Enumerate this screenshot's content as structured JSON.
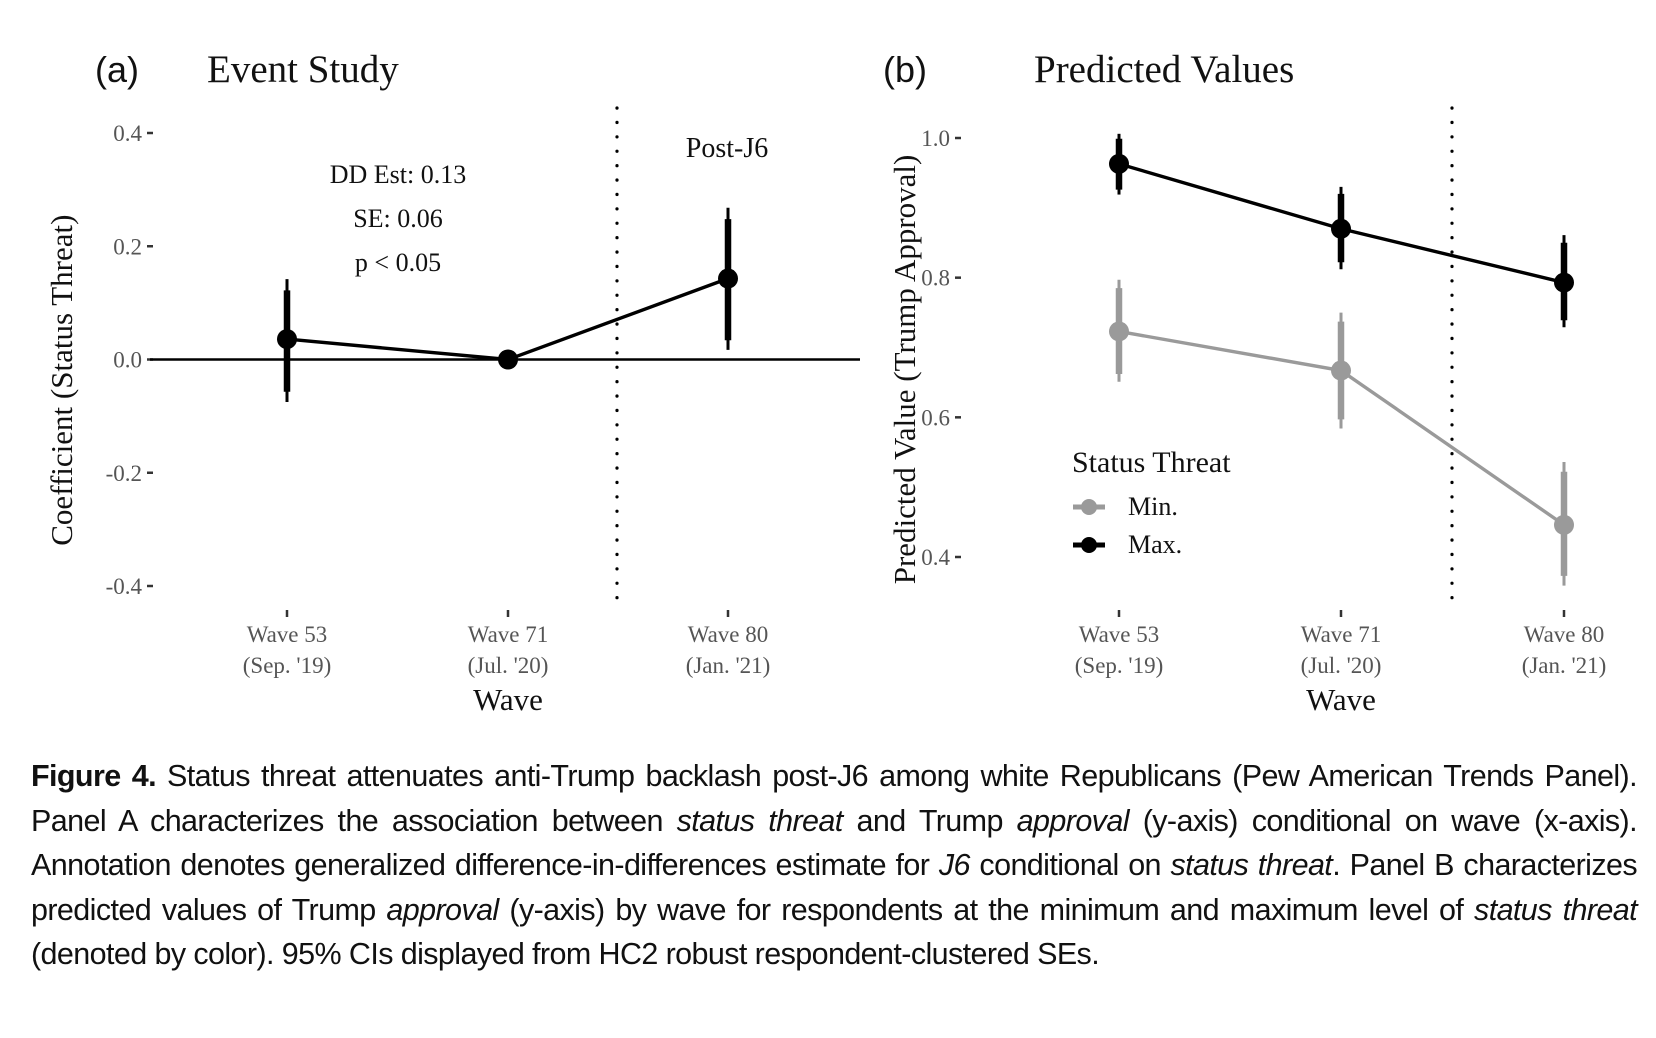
{
  "chart_data": [
    {
      "type": "line",
      "panel_label": "(a)",
      "title": "Event Study",
      "xlabel": "Wave",
      "ylabel": "Coefficient (Status Threat)",
      "categories": [
        "Wave 53\n(Sep. '19)",
        "Wave 71\n(Jul. '20)",
        "Wave 80\n(Jan. '21)"
      ],
      "category_lines": [
        [
          "Wave 53",
          "(Sep. '19)"
        ],
        [
          "Wave 71",
          "(Jul. '20)"
        ],
        [
          "Wave 80",
          "(Jan. '21)"
        ]
      ],
      "ylim": [
        -0.44,
        0.42
      ],
      "yticks": [
        0.4,
        0.2,
        0.0,
        -0.2,
        -0.4
      ],
      "ytick_labels": [
        "0.4",
        "0.2",
        "0.0",
        "-0.2",
        "-0.4"
      ],
      "reference_line_y": 0.0,
      "vline_between": [
        "Wave 71",
        "Wave 80"
      ],
      "vline_label": "Post-J6",
      "annotation": [
        "DD Est: 0.13",
        "SE: 0.06",
        "p < 0.05"
      ],
      "grid": false,
      "series": [
        {
          "name": "Coefficient",
          "color": "#000000",
          "values": [
            0.036,
            0.0,
            0.143
          ],
          "ci95_lower": [
            -0.075,
            0.0,
            0.017
          ],
          "ci95_upper": [
            0.142,
            0.0,
            0.268
          ],
          "ci90_lower": [
            -0.057,
            0.0,
            0.034
          ],
          "ci90_upper": [
            0.122,
            0.0,
            0.248
          ]
        }
      ]
    },
    {
      "type": "line",
      "panel_label": "(b)",
      "title": "Predicted Values",
      "xlabel": "Wave",
      "ylabel": "Predicted Value (Trump Approval)",
      "categories": [
        "Wave 53\n(Sep. '19)",
        "Wave 71\n(Jul. '20)",
        "Wave 80\n(Jan. '21)"
      ],
      "category_lines": [
        [
          "Wave 53",
          "(Sep. '19)"
        ],
        [
          "Wave 71",
          "(Jul. '20)"
        ],
        [
          "Wave 80",
          "(Jan. '21)"
        ]
      ],
      "ylim": [
        0.33,
        1.05
      ],
      "yticks": [
        1.0,
        0.8,
        0.6,
        0.4
      ],
      "ytick_labels": [
        "1.0",
        "0.8",
        "0.6",
        "0.4"
      ],
      "vline_between": [
        "Wave 71",
        "Wave 80"
      ],
      "legend_title": "Status Threat",
      "legend_position": "center-left",
      "grid": false,
      "series": [
        {
          "name": "Min.",
          "color": "#9a9a9a",
          "values": [
            0.723,
            0.667,
            0.446
          ],
          "ci95_lower": [
            0.651,
            0.584,
            0.359
          ],
          "ci95_upper": [
            0.797,
            0.75,
            0.536
          ],
          "ci90_lower": [
            0.662,
            0.597,
            0.373
          ],
          "ci90_upper": [
            0.785,
            0.737,
            0.522
          ]
        },
        {
          "name": "Max.",
          "color": "#000000",
          "values": [
            0.963,
            0.87,
            0.793
          ],
          "ci95_lower": [
            0.919,
            0.812,
            0.729
          ],
          "ci95_upper": [
            1.006,
            0.93,
            0.861
          ],
          "ci90_lower": [
            0.926,
            0.822,
            0.739
          ],
          "ci90_upper": [
            0.999,
            0.92,
            0.85
          ]
        }
      ]
    }
  ],
  "caption": {
    "label": "Figure 4.",
    "segments": [
      {
        "text": "  Status threat attenuates anti-Trump backlash post-J6 among white Republicans (Pew American Trends Panel). Panel A characterizes the association between ",
        "italic": false
      },
      {
        "text": "status threat",
        "italic": true
      },
      {
        "text": " and Trump ",
        "italic": false
      },
      {
        "text": "approval",
        "italic": true
      },
      {
        "text": " (y-axis) conditional on wave (x-axis). Annotation denotes generalized difference-in-differences estimate for ",
        "italic": false
      },
      {
        "text": "J6",
        "italic": true
      },
      {
        "text": " conditional on ",
        "italic": false
      },
      {
        "text": "status threat",
        "italic": true
      },
      {
        "text": ". Panel B characterizes predicted values of Trump ",
        "italic": false
      },
      {
        "text": "approval",
        "italic": true
      },
      {
        "text": " (y-axis) by wave for respondents at the minimum and maximum level of ",
        "italic": false
      },
      {
        "text": "status threat",
        "italic": true
      },
      {
        "text": " (denoted by color). 95% CIs displayed from HC2 robust respondent-clustered SEs.",
        "italic": false
      }
    ]
  }
}
